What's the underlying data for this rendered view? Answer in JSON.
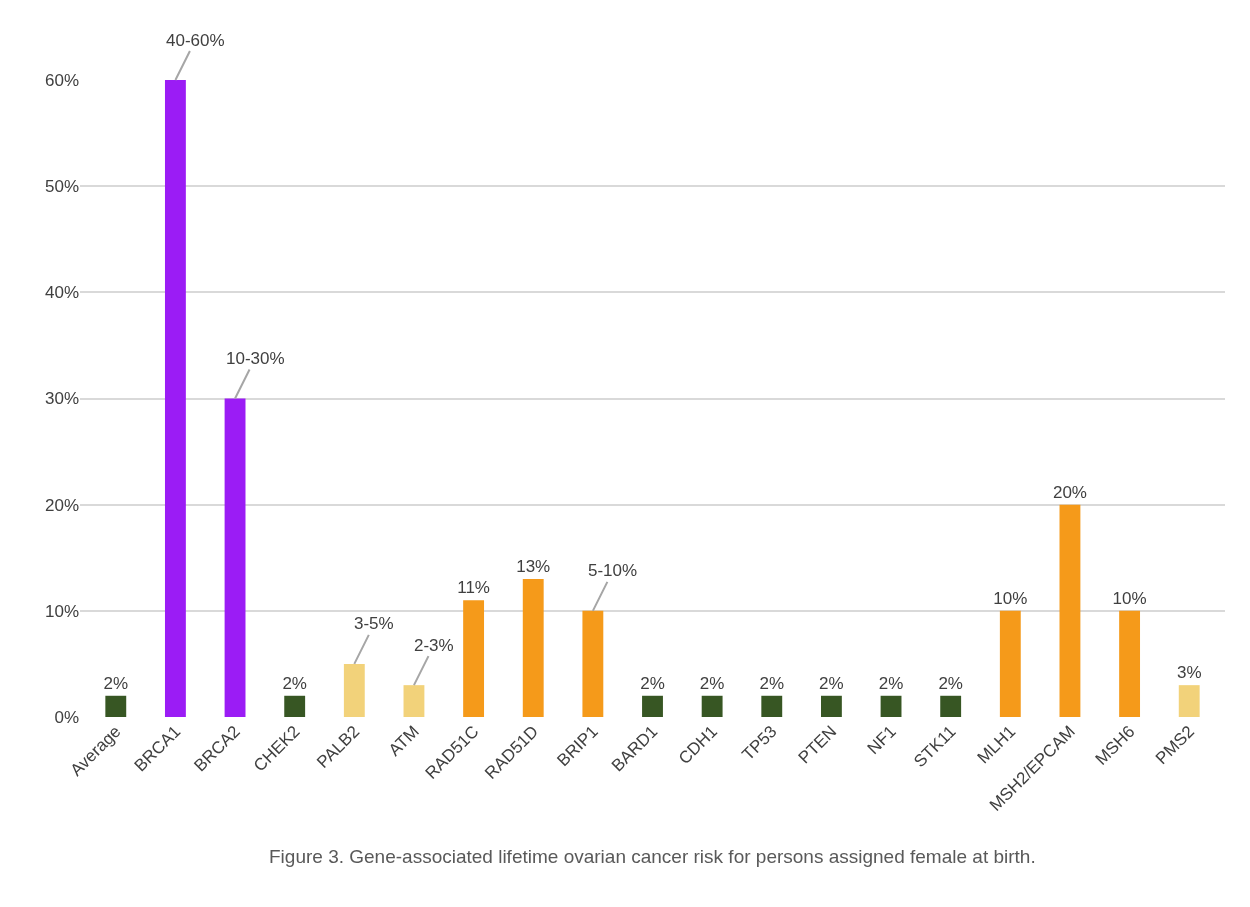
{
  "chart_data": {
    "type": "bar",
    "categories": [
      "Average",
      "BRCA1",
      "BRCA2",
      "CHEK2",
      "PALB2",
      "ATM",
      "RAD51C",
      "RAD51D",
      "BRIP1",
      "BARD1",
      "CDH1",
      "TP53",
      "PTEN",
      "NF1",
      "STK11",
      "MLH1",
      "MSH2/EPCAM",
      "MSH6",
      "PMS2"
    ],
    "values": [
      2,
      60,
      30,
      2,
      5,
      3,
      11,
      13,
      10,
      2,
      2,
      2,
      2,
      2,
      2,
      10,
      20,
      10,
      3
    ],
    "value_labels": [
      "2%",
      null,
      null,
      "2%",
      null,
      null,
      "11%",
      "13%",
      null,
      "2%",
      "2%",
      "2%",
      "2%",
      "2%",
      "2%",
      "10%",
      "20%",
      "10%",
      "3%"
    ],
    "colors": [
      "#375623",
      "#9b1cf5",
      "#9b1cf5",
      "#375623",
      "#f2d27a",
      "#f2d27a",
      "#f59a1a",
      "#f59a1a",
      "#f59a1a",
      "#375623",
      "#375623",
      "#375623",
      "#375623",
      "#375623",
      "#375623",
      "#f59a1a",
      "#f59a1a",
      "#f59a1a",
      "#f2d27a"
    ],
    "ylim": [
      0,
      60
    ],
    "yticks": [
      {
        "value": 0,
        "label": "0%"
      },
      {
        "value": 10,
        "label": "10%"
      },
      {
        "value": 20,
        "label": "20%"
      },
      {
        "value": 30,
        "label": "30%"
      },
      {
        "value": 40,
        "label": "40%"
      },
      {
        "value": 50,
        "label": "50%"
      },
      {
        "value": 60,
        "label": "60%"
      }
    ],
    "grid": "y",
    "annotations": [
      {
        "text": "40-60%",
        "x": "BRCA1",
        "y": 60
      },
      {
        "text": "10-30%",
        "x": "BRCA2",
        "y": 30
      },
      {
        "text": "3-5%",
        "x": "PALB2",
        "y": 5
      },
      {
        "text": "2-3%",
        "x": "ATM",
        "y": 3
      },
      {
        "text": "5-10%",
        "x": "BRIP1",
        "y": 10
      },
      "Figure 3. Gene-associated lifetime ovarian cancer risk for persons assigned female at birth."
    ]
  }
}
